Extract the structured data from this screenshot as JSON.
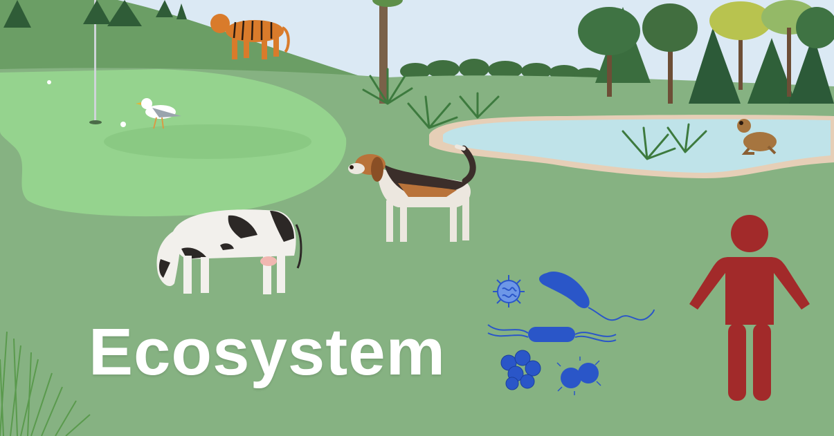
{
  "title": "Ecosystem",
  "colors": {
    "sky": "#dbe9f4",
    "hill": "#6b9e65",
    "field": "#86b282",
    "golf_green": "#95d38e",
    "pond_water": "#bfe3e9",
    "pond_bank": "#e6cfb7",
    "human": "#a22a2a",
    "microbes": "#2a56c8",
    "title_text": "#ffffff"
  },
  "icons": [
    "tiger-icon",
    "seagull-icon",
    "golf-flag-icon",
    "golf-ball-icon",
    "beagle-dog-icon",
    "cow-icon",
    "frog-icon",
    "pond-icon",
    "tree-icon",
    "grass-icon",
    "virus-icon",
    "bacillus-icon",
    "flagellated-bacterium-icon",
    "coccus-cluster-icon",
    "diplococcus-icon",
    "human-figure-icon"
  ]
}
